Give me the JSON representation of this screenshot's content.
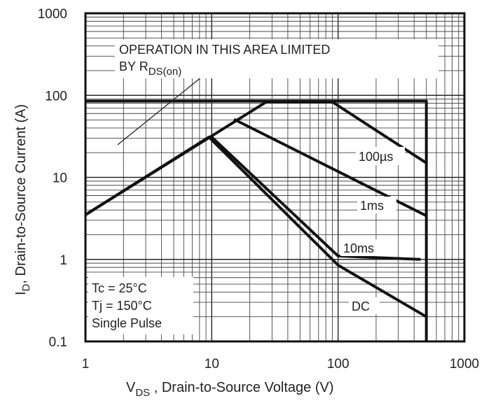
{
  "chart_data": {
    "type": "line",
    "xscale": "log",
    "yscale": "log",
    "xlim": [
      1,
      1000
    ],
    "ylim": [
      0.1,
      1000
    ],
    "grid": true,
    "xlabel_main": "V",
    "xlabel_sub": "DS",
    "xlabel_rest": " , Drain-to-Source Voltage (V)",
    "ylabel_main": "I",
    "ylabel_sub": "D",
    "ylabel_rest": ", Drain-to-Source Current (A)",
    "x_ticks": [
      {
        "value": 1,
        "label": "1"
      },
      {
        "value": 10,
        "label": "10"
      },
      {
        "value": 100,
        "label": "100"
      },
      {
        "value": 1000,
        "label": "1000"
      }
    ],
    "y_ticks": [
      {
        "value": 0.1,
        "label": "0.1"
      },
      {
        "value": 1,
        "label": "1"
      },
      {
        "value": 10,
        "label": "10"
      },
      {
        "value": 100,
        "label": "100"
      },
      {
        "value": 1000,
        "label": "1000"
      }
    ],
    "series": [
      {
        "name": "100µs",
        "points": [
          [
            27,
            83
          ],
          [
            90,
            83
          ],
          [
            500,
            15
          ]
        ]
      },
      {
        "name": "1ms",
        "points": [
          [
            15,
            51
          ],
          [
            500,
            3.4
          ]
        ]
      },
      {
        "name": "10ms",
        "points": [
          [
            10,
            31
          ],
          [
            100,
            1.1
          ],
          [
            450,
            1.0
          ]
        ]
      },
      {
        "name": "DC",
        "points": [
          [
            1,
            3.5
          ],
          [
            9.5,
            31
          ],
          [
            100,
            0.85
          ],
          [
            500,
            0.2
          ]
        ]
      },
      {
        "points": [
          [
            1,
            85
          ],
          [
            500,
            85
          ],
          [
            500,
            0.1
          ]
        ]
      },
      {
        "points": [
          [
            1,
            3.5
          ],
          [
            27,
            83
          ]
        ]
      }
    ],
    "rds_line": [
      [
        1.8,
        25
      ],
      [
        9.6,
        200
      ]
    ],
    "annotations": {
      "limit_line1": "OPERATION IN THIS AREA LIMITED",
      "limit_line2_main": "BY R",
      "limit_line2_sub": "DS(on)",
      "conditions": [
        "Tc = 25°C",
        "Tj = 150°C",
        "Single Pulse"
      ]
    }
  }
}
